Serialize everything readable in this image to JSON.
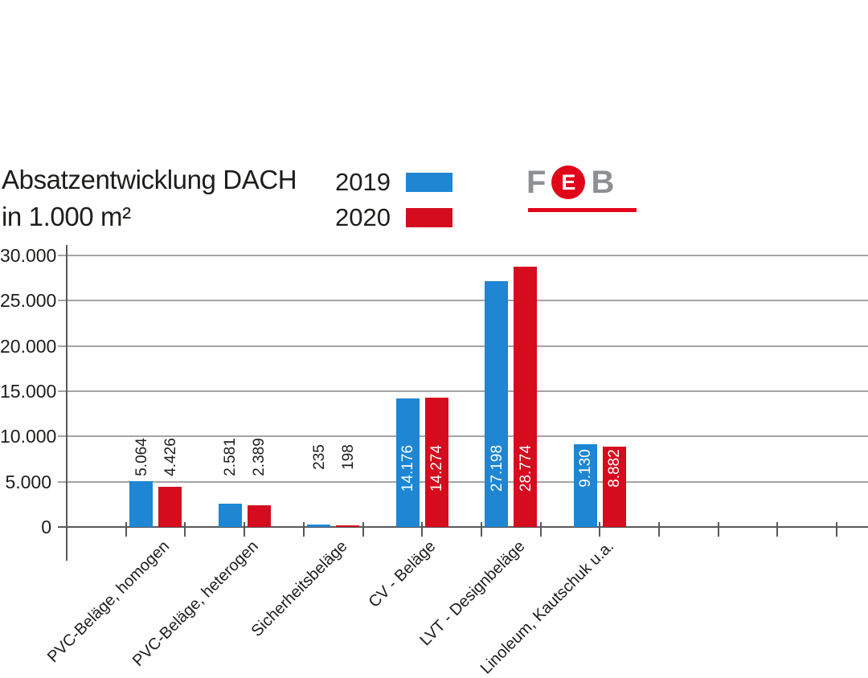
{
  "title": {
    "line1": "Absatzentwicklung DACH",
    "line2": "in 1.000 m²"
  },
  "legend": {
    "items": [
      {
        "label": "2019",
        "color": "#1e86d2"
      },
      {
        "label": "2020",
        "color": "#d50c1e"
      }
    ]
  },
  "logo": {
    "letter_f": "F",
    "letter_e": "E",
    "letter_b": "B",
    "gray": "#8d9093",
    "red": "#e1051a"
  },
  "colors": {
    "series_2019": "#1e86d2",
    "series_2020": "#d50c1e",
    "grid": "#a4a4a4",
    "axis": "#59595b",
    "label_dark": "#1d1d1b",
    "label_light": "#ffffff"
  },
  "chart_data": {
    "type": "bar",
    "title": "Absatzentwicklung DACH in 1.000 m²",
    "xlabel": "",
    "ylabel": "in 1.000 m²",
    "ylim": [
      0,
      30000
    ],
    "ytick_step": 5000,
    "ytick_labels": [
      "0",
      "5.000",
      "10.000",
      "15.000",
      "20.000",
      "25.000",
      "30.000"
    ],
    "grid": true,
    "legend_position": "top",
    "categories": [
      "PVC-Beläge, homogen",
      "PVC-Beläge, heterogen",
      "Sicherheitsbeläge",
      "CV - Beläge",
      "LVT - Designbeläge",
      "Linoleum, Kautschuk u.a."
    ],
    "series": [
      {
        "name": "2019",
        "color": "#1e86d2",
        "values": [
          5064,
          2581,
          235,
          14176,
          27198,
          9130
        ],
        "labels": [
          "5.064",
          "2.581",
          "235",
          "14.176",
          "27.198",
          "9.130"
        ]
      },
      {
        "name": "2020",
        "color": "#d50c1e",
        "values": [
          4426,
          2389,
          198,
          14274,
          28774,
          8882
        ],
        "labels": [
          "4.426",
          "2.389",
          "198",
          "14.274",
          "28.774",
          "8.882"
        ]
      }
    ]
  }
}
